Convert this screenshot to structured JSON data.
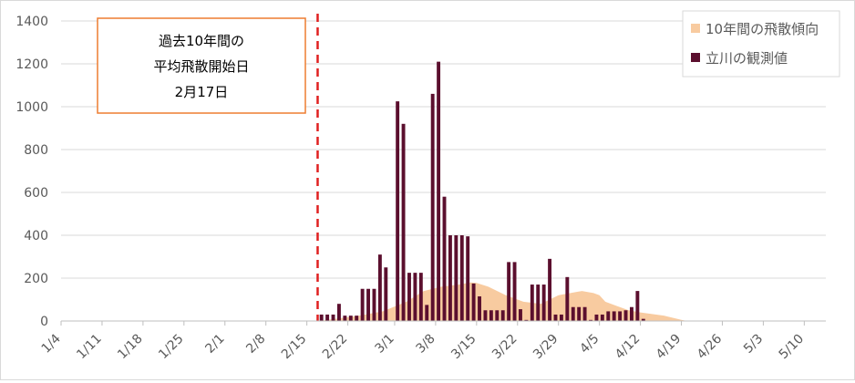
{
  "chart_data": {
    "type": "bar",
    "y_ticks": [
      0,
      200,
      400,
      600,
      800,
      1000,
      1200,
      1400
    ],
    "ylim": [
      0,
      1400
    ],
    "x_ticks": [
      "1/4",
      "1/11",
      "1/18",
      "1/25",
      "2/1",
      "2/8",
      "2/15",
      "2/22",
      "3/1",
      "3/8",
      "3/15",
      "3/22",
      "3/29",
      "4/5",
      "4/12",
      "4/19",
      "4/26",
      "5/3",
      "5/10"
    ],
    "grid": true,
    "legend_position": "top-right",
    "annotation": {
      "lines": [
        "過去10年間の",
        "平均飛散開始日",
        "2月17日"
      ],
      "marker_date": "2/17",
      "color": "#e06666",
      "line_color": "#e02020",
      "border_color": "#ed7d31"
    },
    "series": [
      {
        "name": "10年間の飛散傾向",
        "type": "area",
        "color": "#f8cba0",
        "dates": [
          "2/17",
          "2/24",
          "2/28",
          "3/3",
          "3/6",
          "3/9",
          "3/12",
          "3/14",
          "3/15",
          "3/17",
          "3/20",
          "3/23",
          "3/26",
          "3/29",
          "4/2",
          "4/4",
          "4/5",
          "4/6",
          "4/8",
          "4/10",
          "4/12",
          "4/16",
          "4/19",
          "4/20"
        ],
        "values": [
          0,
          25,
          45,
          90,
          140,
          160,
          170,
          180,
          178,
          160,
          120,
          90,
          80,
          120,
          140,
          130,
          120,
          90,
          70,
          50,
          40,
          25,
          5,
          0
        ]
      },
      {
        "name": "立川の観測値",
        "type": "bar",
        "color": "#5b0f2e",
        "dates": [
          "2/17",
          "2/18",
          "2/19",
          "2/20",
          "2/21",
          "2/22",
          "2/23",
          "2/24",
          "2/25",
          "2/26",
          "2/27",
          "2/28",
          "3/1",
          "3/2",
          "3/3",
          "3/4",
          "3/5",
          "3/6",
          "3/7",
          "3/8",
          "3/9",
          "3/10",
          "3/11",
          "3/12",
          "3/13",
          "3/14",
          "3/15",
          "3/16",
          "3/17",
          "3/18",
          "3/19",
          "3/20",
          "3/21",
          "3/22",
          "3/23",
          "3/24",
          "3/25",
          "3/26",
          "3/27",
          "3/28",
          "3/29",
          "3/30",
          "3/31",
          "4/1",
          "4/2",
          "4/3",
          "4/4",
          "4/5",
          "4/6",
          "4/7",
          "4/8",
          "4/9",
          "4/10",
          "4/11",
          "4/12"
        ],
        "values": [
          30,
          30,
          30,
          80,
          25,
          25,
          25,
          150,
          150,
          150,
          310,
          250,
          1025,
          920,
          225,
          225,
          225,
          75,
          1060,
          1210,
          580,
          400,
          400,
          400,
          395,
          175,
          115,
          50,
          50,
          50,
          50,
          275,
          275,
          55,
          5,
          170,
          170,
          170,
          290,
          30,
          30,
          205,
          65,
          65,
          65,
          5,
          30,
          30,
          45,
          45,
          45,
          50,
          65,
          140,
          10
        ]
      }
    ]
  }
}
